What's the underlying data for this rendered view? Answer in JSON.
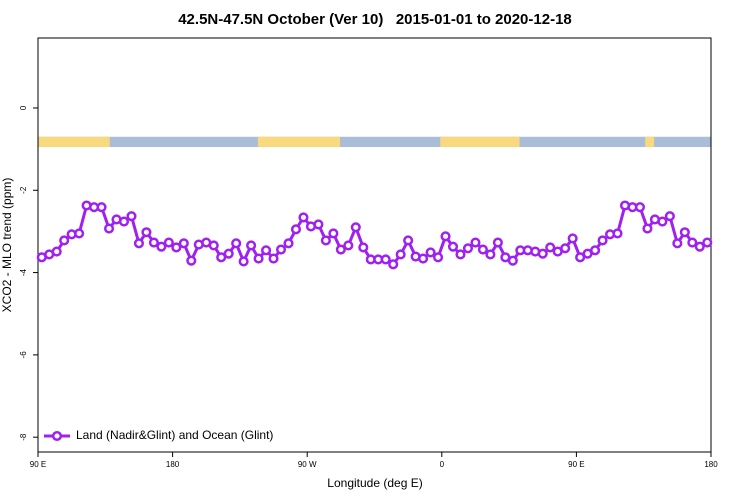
{
  "chart_data": {
    "type": "line",
    "title": "42.5N-47.5N October (Ver 10)   2015-01-01 to 2020-12-18",
    "x_label": "Longitude (deg E)",
    "y_label": "XCO2 - MLO trend (ppm)",
    "xlim": [
      90,
      540
    ],
    "xticks": [
      {
        "value": 90,
        "label": "90 E"
      },
      {
        "value": 180,
        "label": "180"
      },
      {
        "value": 270,
        "label": "90 W"
      },
      {
        "value": 360,
        "label": "0"
      },
      {
        "value": 450,
        "label": "90 E"
      },
      {
        "value": 540,
        "label": "180"
      }
    ],
    "ylim": [
      -8.36,
      1.7
    ],
    "yticks": [
      0,
      -2,
      -4,
      -6,
      -8
    ],
    "legend": "bottom-left",
    "surface_band": {
      "y": [
        -0.95,
        -0.7
      ],
      "land_color": "#f9d97e",
      "ocean_color": "#a9bcd8",
      "land": [
        [
          90,
          138
        ],
        [
          237,
          292
        ],
        [
          359,
          412
        ],
        [
          496,
          502
        ]
      ]
    },
    "x": [
      92.5,
      97.5,
      102.5,
      107.5,
      112.5,
      117.5,
      122.5,
      127.5,
      132.5,
      137.5,
      142.5,
      147.5,
      152.5,
      157.5,
      162.5,
      167.5,
      172.5,
      177.5,
      182.5,
      187.5,
      192.5,
      197.5,
      202.5,
      207.5,
      212.5,
      217.5,
      222.5,
      227.5,
      232.5,
      237.5,
      242.5,
      247.5,
      252.5,
      257.5,
      262.5,
      267.5,
      272.5,
      277.5,
      282.5,
      287.5,
      292.5,
      297.5,
      302.5,
      307.5,
      312.5,
      317.5,
      322.5,
      327.5,
      332.5,
      337.5,
      342.5,
      347.5,
      352.5,
      357.5,
      362.5,
      367.5,
      372.5,
      377.5,
      382.5,
      387.5,
      392.5,
      397.5,
      402.5,
      407.5,
      412.5,
      417.5,
      422.5,
      427.5,
      432.5,
      437.5,
      442.5,
      447.5,
      452.5,
      457.5,
      462.5,
      467.5,
      472.5,
      477.5,
      482.5,
      487.5,
      492.5,
      497.5,
      502.5,
      507.5,
      512.5,
      517.5,
      522.5,
      527.5,
      532.5,
      537.5
    ],
    "series": [
      {
        "name": "Land (Nadir&Glint) and Ocean (Glint)",
        "color": "#a020f0",
        "values": [
          -3.63,
          -3.56,
          -3.49,
          -3.22,
          -3.07,
          -3.05,
          -2.37,
          -2.41,
          -2.41,
          -2.93,
          -2.71,
          -2.76,
          -2.63,
          -3.29,
          -3.02,
          -3.27,
          -3.37,
          -3.27,
          -3.39,
          -3.29,
          -3.71,
          -3.32,
          -3.27,
          -3.34,
          -3.63,
          -3.54,
          -3.29,
          -3.73,
          -3.34,
          -3.66,
          -3.46,
          -3.66,
          -3.44,
          -3.29,
          -2.95,
          -2.66,
          -2.88,
          -2.83,
          -3.22,
          -3.05,
          -3.44,
          -3.34,
          -2.9,
          -3.39,
          -3.68,
          -3.68,
          -3.68,
          -3.8,
          -3.56,
          -3.22,
          -3.61,
          -3.66,
          -3.51,
          -3.63,
          -3.12,
          -3.37,
          -3.56,
          -3.41,
          -3.27,
          -3.44,
          -3.56,
          -3.27,
          -3.63,
          -3.71,
          -3.46,
          -3.46,
          -3.49,
          -3.54,
          -3.39,
          -3.49,
          -3.41,
          -3.17,
          -3.63,
          -3.54,
          -3.46,
          -3.22,
          -3.07,
          -3.05,
          -2.37,
          -2.41,
          -2.41,
          -2.93,
          -2.71,
          -2.76,
          -2.63,
          -3.29,
          -3.02,
          -3.27,
          -3.37,
          -3.27
        ]
      }
    ]
  }
}
